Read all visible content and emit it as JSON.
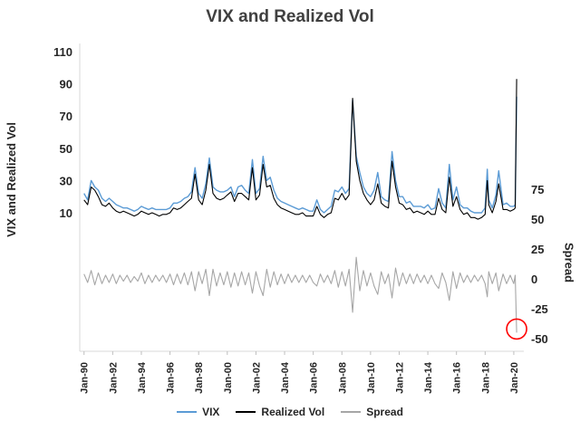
{
  "chart_data": {
    "type": "line",
    "title": "VIX and Realized Vol",
    "left_axis": {
      "label": "VIX and Realized Vol",
      "ticks": [
        10,
        30,
        50,
        70,
        90,
        110
      ],
      "range": [
        10,
        110
      ]
    },
    "right_axis": {
      "label": "Spread",
      "ticks": [
        -50,
        -25,
        0,
        25,
        50,
        75
      ],
      "range": [
        -50,
        75
      ]
    },
    "x_axis": {
      "tick_years": [
        1990,
        1992,
        1994,
        1996,
        1998,
        2000,
        2002,
        2004,
        2006,
        2008,
        2010,
        2012,
        2014,
        2016,
        2018,
        2020
      ],
      "tick_labels": [
        "Jan-90",
        "Jan-92",
        "Jan-94",
        "Jan-96",
        "Jan-98",
        "Jan-00",
        "Jan-02",
        "Jan-04",
        "Jan-06",
        "Jan-08",
        "Jan-10",
        "Jan-12",
        "Jan-14",
        "Jan-16",
        "Jan-18",
        "Jan-20"
      ]
    },
    "x": [
      1990.0,
      1990.25,
      1990.5,
      1990.75,
      1991.0,
      1991.25,
      1991.5,
      1991.75,
      1992.0,
      1992.25,
      1992.5,
      1992.75,
      1993.0,
      1993.25,
      1993.5,
      1993.75,
      1994.0,
      1994.25,
      1994.5,
      1994.75,
      1995.0,
      1995.25,
      1995.5,
      1995.75,
      1996.0,
      1996.25,
      1996.5,
      1996.75,
      1997.0,
      1997.25,
      1997.5,
      1997.75,
      1998.0,
      1998.25,
      1998.5,
      1998.75,
      1999.0,
      1999.25,
      1999.5,
      1999.75,
      2000.0,
      2000.25,
      2000.5,
      2000.75,
      2001.0,
      2001.25,
      2001.5,
      2001.75,
      2002.0,
      2002.25,
      2002.5,
      2002.75,
      2003.0,
      2003.25,
      2003.5,
      2003.75,
      2004.0,
      2004.25,
      2004.5,
      2004.75,
      2005.0,
      2005.25,
      2005.5,
      2005.75,
      2006.0,
      2006.25,
      2006.5,
      2006.75,
      2007.0,
      2007.25,
      2007.5,
      2007.75,
      2008.0,
      2008.25,
      2008.5,
      2008.75,
      2009.0,
      2009.25,
      2009.5,
      2009.75,
      2010.0,
      2010.25,
      2010.5,
      2010.75,
      2011.0,
      2011.25,
      2011.5,
      2011.75,
      2012.0,
      2012.25,
      2012.5,
      2012.75,
      2013.0,
      2013.25,
      2013.5,
      2013.75,
      2014.0,
      2014.25,
      2014.5,
      2014.75,
      2015.0,
      2015.25,
      2015.5,
      2015.75,
      2016.0,
      2016.25,
      2016.5,
      2016.75,
      2017.0,
      2017.25,
      2017.5,
      2017.75,
      2018.0,
      2018.15,
      2018.25,
      2018.5,
      2018.75,
      2018.95,
      2019.25,
      2019.5,
      2019.75,
      2020.0,
      2020.1,
      2020.2
    ],
    "series": [
      {
        "name": "VIX",
        "axis": "left",
        "color": "#5B9BD5",
        "values": [
          22,
          18,
          30,
          26,
          24,
          19,
          17,
          19,
          17,
          15,
          14,
          13,
          13,
          12,
          11,
          12,
          14,
          13,
          12,
          13,
          12,
          12,
          12,
          12,
          13,
          16,
          16,
          17,
          19,
          20,
          23,
          38,
          22,
          19,
          28,
          44,
          26,
          24,
          23,
          23,
          24,
          26,
          20,
          26,
          27,
          24,
          22,
          43,
          22,
          25,
          45,
          30,
          32,
          24,
          19,
          17,
          16,
          15,
          14,
          13,
          12,
          13,
          12,
          11,
          11,
          18,
          12,
          10,
          12,
          14,
          24,
          23,
          26,
          22,
          25,
          80,
          45,
          35,
          26,
          22,
          20,
          24,
          35,
          20,
          18,
          17,
          48,
          30,
          20,
          20,
          16,
          17,
          14,
          14,
          14,
          13,
          15,
          12,
          13,
          25,
          16,
          13,
          40,
          18,
          26,
          15,
          13,
          13,
          11,
          10,
          10,
          10,
          13,
          37,
          18,
          13,
          21,
          36,
          15,
          16,
          14,
          14,
          15,
          82
        ]
      },
      {
        "name": "Realized Vol",
        "axis": "left",
        "color": "#000000",
        "values": [
          18,
          15,
          26,
          24,
          20,
          15,
          14,
          16,
          13,
          11,
          10,
          11,
          10,
          9,
          8,
          9,
          11,
          10,
          9,
          10,
          9,
          8,
          9,
          9,
          10,
          13,
          12,
          13,
          15,
          17,
          19,
          34,
          18,
          15,
          24,
          40,
          22,
          19,
          18,
          19,
          21,
          23,
          17,
          22,
          22,
          20,
          18,
          38,
          18,
          21,
          40,
          26,
          27,
          19,
          15,
          13,
          12,
          11,
          10,
          9,
          9,
          10,
          8,
          8,
          8,
          14,
          9,
          7,
          9,
          10,
          19,
          18,
          22,
          18,
          21,
          81,
          42,
          30,
          22,
          18,
          15,
          18,
          28,
          16,
          14,
          13,
          42,
          26,
          16,
          15,
          12,
          13,
          10,
          11,
          10,
          9,
          11,
          9,
          9,
          19,
          12,
          10,
          32,
          14,
          20,
          12,
          9,
          10,
          7,
          7,
          6,
          7,
          9,
          30,
          15,
          10,
          17,
          28,
          12,
          12,
          11,
          12,
          13,
          93
        ]
      },
      {
        "name": "Spread",
        "axis": "right",
        "color": "#A6A6A6",
        "values": [
          4,
          -3,
          7,
          -5,
          5,
          -4,
          3,
          -3,
          4,
          -4,
          3,
          -2,
          3,
          -3,
          2,
          -2,
          5,
          -4,
          3,
          -3,
          3,
          -2,
          3,
          -3,
          4,
          -5,
          4,
          -4,
          5,
          -5,
          6,
          -10,
          6,
          -4,
          8,
          -14,
          8,
          -6,
          5,
          -5,
          6,
          -7,
          5,
          -6,
          6,
          -5,
          5,
          -12,
          6,
          -6,
          -14,
          8,
          -7,
          6,
          -5,
          4,
          -4,
          4,
          -3,
          3,
          -3,
          3,
          -3,
          3,
          -3,
          -6,
          4,
          -3,
          3,
          -4,
          7,
          -7,
          6,
          -6,
          8,
          -28,
          18,
          -10,
          7,
          -6,
          5,
          -6,
          -13,
          6,
          -4,
          4,
          -16,
          9,
          -6,
          5,
          -4,
          4,
          -4,
          4,
          -3,
          3,
          -4,
          3,
          -4,
          -8,
          5,
          -3,
          -18,
          6,
          -8,
          5,
          -3,
          3,
          -3,
          3,
          -2,
          3,
          -4,
          -15,
          6,
          -4,
          5,
          -10,
          4,
          -4,
          3,
          -4,
          3,
          -45
        ]
      }
    ],
    "legend": {
      "position": "bottom",
      "entries": [
        "VIX",
        "Realized Vol",
        "Spread"
      ]
    },
    "annotation": {
      "type": "circle",
      "x": 2020.2,
      "value": -45,
      "axis": "right",
      "color": "#FF0000"
    },
    "grid": "off",
    "colors": {
      "axis_line": "#d9d9d9",
      "tick_mark": "#bfbfbf",
      "text": "#262626",
      "title": "#404040"
    }
  }
}
